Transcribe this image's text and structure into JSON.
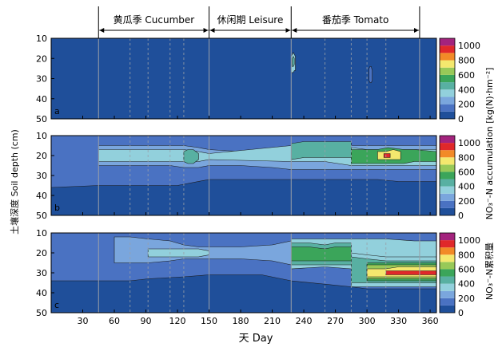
{
  "chart_data": {
    "type": "heatmap",
    "title": "",
    "xlabel": "天 Day",
    "ylabel": "土壤深度 Soil depth (cm)",
    "colorbar_label": "NO₃⁻-N accumulation [kg(N)·hm⁻²]",
    "colorbar_label_cn": "NO₃⁻-N累积量",
    "xlim": [
      0,
      366
    ],
    "ylim": [
      50,
      10
    ],
    "x_ticks": [
      30,
      60,
      90,
      120,
      150,
      180,
      210,
      240,
      270,
      300,
      330,
      360
    ],
    "y_ticks": [
      10,
      20,
      30,
      40,
      50
    ],
    "color_ticks": [
      0,
      200,
      400,
      600,
      800,
      1000
    ],
    "color_levels": [
      0,
      100,
      200,
      300,
      400,
      500,
      600,
      700,
      800,
      900,
      1000,
      1100
    ],
    "color_scale": [
      "#1f4f9a",
      "#4a72c2",
      "#7aa6dd",
      "#92d0dc",
      "#58b0a2",
      "#3ba55a",
      "#98c958",
      "#f4e86e",
      "#f28a27",
      "#e0282a",
      "#a3237d"
    ],
    "season_bars": [
      {
        "label": "黄瓜季 Cucumber",
        "start": 45,
        "end": 150
      },
      {
        "label": "休闲期 Leisure",
        "start": 150,
        "end": 228
      },
      {
        "label": "番茄季 Tomato",
        "start": 228,
        "end": 350
      }
    ],
    "solid_lines": [
      45,
      150,
      228,
      350
    ],
    "dashed_lines": [
      75,
      92,
      113,
      126,
      260,
      285,
      300,
      318
    ],
    "panels": [
      {
        "label": "a",
        "background": 0,
        "regions": [
          {
            "level": 300,
            "x": [
              228,
              229,
              230,
              231,
              232
            ],
            "top": [
              19,
              18,
              17,
              18,
              19
            ],
            "bottom": [
              27,
              27,
              27,
              26,
              26
            ]
          },
          {
            "level": 400,
            "x": [
              229,
              230,
              231
            ],
            "top": [
              20,
              19,
              20
            ],
            "bottom": [
              24,
              24,
              23
            ]
          },
          {
            "level": 100,
            "x": [
              302,
              303,
              304,
              305
            ],
            "top": [
              25,
              24,
              24,
              26
            ],
            "bottom": [
              31,
              32,
              32,
              31
            ]
          }
        ]
      },
      {
        "label": "b",
        "background": 0,
        "regions": [
          {
            "level": 100,
            "x": [
              0,
              45,
              120,
              150,
              200,
              228,
              285,
              310,
              330,
              366
            ],
            "top": [
              10,
              10,
              10,
              10,
              10,
              10,
              10,
              10,
              10,
              10
            ],
            "bottom": [
              36,
              35,
              35,
              32,
              32,
              32,
              32,
              32,
              33,
              33
            ]
          },
          {
            "level": 200,
            "x": [
              45,
              60,
              75,
              92,
              113,
              126,
              140,
              150,
              180,
              210,
              228,
              260,
              285,
              300,
              318,
              330,
              345,
              366
            ],
            "top": [
              15,
              15,
              15,
              15,
              15,
              15,
              16,
              17,
              18,
              17,
              17,
              16,
              15,
              15,
              15,
              15,
              15,
              15
            ],
            "bottom": [
              25,
              25,
              25,
              25,
              25,
              26,
              26,
              25,
              25,
              26,
              27,
              27,
              27,
              27,
              27,
              27,
              27,
              27
            ]
          },
          {
            "level": 300,
            "x": [
              45,
              75,
              92,
              113,
              126,
              140,
              150,
              228,
              240,
              260,
              285,
              300,
              318,
              330,
              345,
              366
            ],
            "top": [
              17,
              17,
              17,
              17,
              17,
              18,
              19,
              15,
              15,
              15,
              16,
              17,
              17,
              17,
              17,
              17
            ],
            "bottom": [
              23,
              23,
              23,
              23,
              23,
              23,
              22,
              23,
              23,
              23,
              25,
              25,
              25,
              25,
              25,
              25
            ]
          },
          {
            "level": 400,
            "x": [
              126,
              130,
              135,
              140
            ],
            "top": [
              18,
              17,
              17,
              19
            ],
            "bottom": [
              23,
              24,
              24,
              22
            ]
          },
          {
            "level": 400,
            "x": [
              228,
              240,
              260,
              285
            ],
            "top": [
              14,
              13,
              13,
              13
            ],
            "bottom": [
              22,
              21,
              21,
              21
            ]
          },
          {
            "level": 500,
            "x": [
              285,
              300,
              310,
              320,
              335,
              345,
              366
            ],
            "top": [
              17,
              17,
              17,
              16,
              17,
              17,
              18
            ],
            "bottom": [
              24,
              24,
              24,
              24,
              24,
              23,
              23
            ]
          },
          {
            "level": 700,
            "x": [
              310,
              318,
              325,
              332
            ],
            "top": [
              18,
              18,
              17,
              18
            ],
            "bottom": [
              22,
              22,
              22,
              22
            ]
          },
          {
            "level": 900,
            "x": [
              316,
              319,
              322
            ],
            "top": [
              19,
              19,
              19
            ],
            "bottom": [
              21,
              21,
              21
            ]
          }
        ]
      },
      {
        "label": "c",
        "background": 0,
        "regions": [
          {
            "level": 100,
            "x": [
              0,
              45,
              75,
              92,
              126,
              150,
              200,
              228,
              285,
              300,
              330,
              366
            ],
            "top": [
              10,
              10,
              10,
              10,
              10,
              10,
              10,
              10,
              10,
              10,
              10,
              10
            ],
            "bottom": [
              34,
              34,
              34,
              33,
              32,
              31,
              31,
              34,
              37,
              38,
              38,
              38
            ]
          },
          {
            "level": 200,
            "x": [
              60,
              75,
              92,
              113,
              126,
              140,
              150,
              180,
              210,
              228
            ],
            "top": [
              12,
              12,
              13,
              14,
              16,
              17,
              17,
              17,
              16,
              14
            ],
            "bottom": [
              25,
              25,
              25,
              24,
              23,
              23,
              23,
              23,
              24,
              26
            ]
          },
          {
            "level": 300,
            "x": [
              92,
              100,
              113,
              126,
              140,
              150
            ],
            "top": [
              18,
              18,
              18,
              18,
              18,
              19
            ],
            "bottom": [
              22,
              22,
              22,
              22,
              22,
              21
            ]
          },
          {
            "level": 300,
            "x": [
              228,
              260,
              285,
              300,
              318,
              345,
              366
            ],
            "top": [
              13,
              13,
              13,
              13,
              13,
              14,
              14
            ],
            "bottom": [
              28,
              27,
              28,
              28,
              28,
              28,
              28
            ]
          },
          {
            "level": 400,
            "x": [
              228,
              245,
              260,
              270,
              285
            ],
            "top": [
              15,
              15,
              16,
              15,
              15
            ],
            "bottom": [
              26,
              26,
              26,
              26,
              26
            ]
          },
          {
            "level": 500,
            "x": [
              228,
              245,
              260,
              270,
              285
            ],
            "top": [
              17,
              17,
              18,
              17,
              17
            ],
            "bottom": [
              24,
              24,
              24,
              24,
              24
            ]
          },
          {
            "level": 300,
            "x": [
              285,
              300,
              318,
              330,
              345,
              366
            ],
            "top": [
              20,
              21,
              22,
              22,
              22,
              22
            ],
            "bottom": [
              37,
              37,
              37,
              37,
              37,
              37
            ]
          },
          {
            "level": 400,
            "x": [
              285,
              300,
              318,
              330,
              345,
              366
            ],
            "top": [
              22,
              23,
              24,
              24,
              24,
              24
            ],
            "bottom": [
              35,
              35,
              35,
              35,
              35,
              35
            ]
          },
          {
            "level": 500,
            "x": [
              300,
              318,
              330,
              345,
              366
            ],
            "top": [
              25,
              25,
              25,
              25,
              25
            ],
            "bottom": [
              34,
              34,
              34,
              34,
              34
            ]
          },
          {
            "level": 600,
            "x": [
              300,
              318,
              330,
              345,
              366
            ],
            "top": [
              26,
              26,
              26,
              26,
              26
            ],
            "bottom": [
              33,
              33,
              33,
              33,
              33
            ]
          },
          {
            "level": 700,
            "x": [
              300,
              318,
              330,
              345,
              366
            ],
            "top": [
              28,
              28,
              27,
              27,
              27
            ],
            "bottom": [
              32,
              32,
              32,
              32,
              32
            ]
          },
          {
            "level": 900,
            "x": [
              318,
              330,
              345,
              366
            ],
            "top": [
              29,
              29,
              29,
              29
            ],
            "bottom": [
              31,
              31,
              31,
              31
            ]
          }
        ]
      }
    ]
  }
}
